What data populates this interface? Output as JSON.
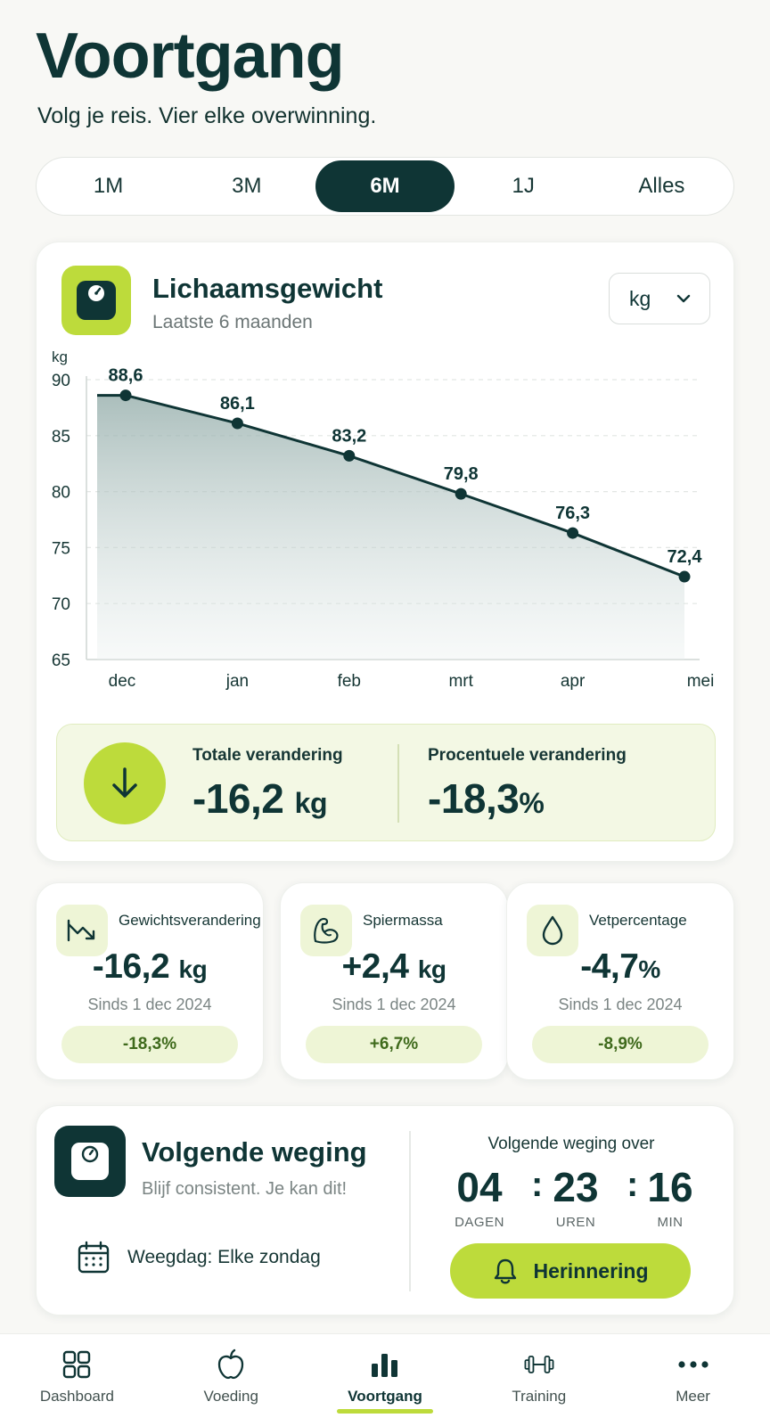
{
  "header": {
    "title": "Voortgang",
    "subtitle": "Volg je reis. Vier elke overwinning."
  },
  "range_tabs": [
    {
      "label": "1M",
      "active": false
    },
    {
      "label": "3M",
      "active": false
    },
    {
      "label": "6M",
      "active": true
    },
    {
      "label": "1J",
      "active": false
    },
    {
      "label": "Alles",
      "active": false
    }
  ],
  "weight_card": {
    "icon": "scale-icon",
    "title": "Lichaamsgewicht",
    "subtitle": "Laatste 6 maanden",
    "unit_select": "kg"
  },
  "chart_data": {
    "type": "area",
    "title": "",
    "ylabel": "kg",
    "xlabel": "",
    "categories": [
      "dec",
      "jan",
      "feb",
      "mrt",
      "apr",
      "mei"
    ],
    "series": [
      {
        "values": [
          88.6,
          86.1,
          83.2,
          79.8,
          76.3,
          72.4
        ]
      }
    ],
    "data_labels": [
      "88,6",
      "86,1",
      "83,2",
      "79,8",
      "76,3",
      "72,4"
    ],
    "ylim": [
      65,
      90
    ],
    "yticks": [
      "65",
      "70",
      "75",
      "80",
      "85",
      "90"
    ],
    "grid": true,
    "legend": "none"
  },
  "summary": {
    "total_label": "Totale verandering",
    "total_value": "-16,2",
    "total_unit": "kg",
    "percent_label": "Procentuele verandering",
    "percent_value": "-18,3",
    "percent_unit": "%"
  },
  "metrics": [
    {
      "icon": "trend-down-icon",
      "title": "Gewichtsverandering",
      "value": "-16,2",
      "unit": "kg",
      "since": "Sinds 1 dec 2024",
      "badge": "-18,3%"
    },
    {
      "icon": "muscle-icon",
      "title": "Spiermassa",
      "value": "+2,4",
      "unit": "kg",
      "since": "Sinds 1 dec 2024",
      "badge": "+6,7%"
    },
    {
      "icon": "droplet-icon",
      "title": "Vetpercentage",
      "value": "-4,7",
      "unit": "%",
      "since": "Sinds 1 dec 2024",
      "badge": "-8,9%"
    }
  ],
  "next_weigh": {
    "title": "Volgende weging",
    "subtitle": "Blijf consistent. Je kan dit!",
    "weigh_day": "Weegdag: Elke zondag",
    "countdown_label": "Volgende weging over",
    "days": "04",
    "days_label": "DAGEN",
    "hours": "23",
    "hours_label": "UREN",
    "minutes": "16",
    "minutes_label": "MIN",
    "separator": ":",
    "reminder_label": "Herinnering"
  },
  "bottom_nav": [
    {
      "label": "Dashboard",
      "icon": "grid-icon",
      "active": false
    },
    {
      "label": "Voeding",
      "icon": "apple-icon",
      "active": false
    },
    {
      "label": "Voortgang",
      "icon": "bar-chart-icon",
      "active": true
    },
    {
      "label": "Training",
      "icon": "dumbbell-icon",
      "active": false
    },
    {
      "label": "Meer",
      "icon": "more-icon",
      "active": false
    }
  ],
  "colors": {
    "primary": "#0f3535",
    "accent": "#bddb3b",
    "accent_soft": "#eef5d6",
    "background": "#f8f8f5"
  }
}
